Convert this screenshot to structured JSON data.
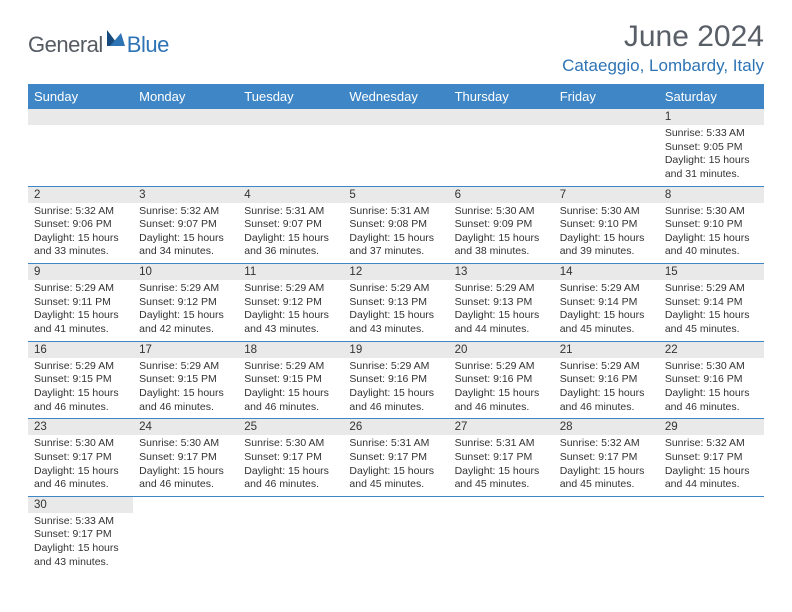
{
  "brand": {
    "general": "General",
    "blue": "Blue"
  },
  "title": "June 2024",
  "location": "Cataeggio, Lombardy, Italy",
  "colors": {
    "header_bg": "#3e86c6",
    "header_text": "#ffffff",
    "daynum_bg": "#e9e9e9",
    "border": "#3e86c6",
    "title_color": "#595f67",
    "location_color": "#2e74b5",
    "body_text": "#333333",
    "cell_fontsize": 10.5
  },
  "weekdays": [
    "Sunday",
    "Monday",
    "Tuesday",
    "Wednesday",
    "Thursday",
    "Friday",
    "Saturday"
  ],
  "weeks": [
    [
      null,
      null,
      null,
      null,
      null,
      null,
      {
        "n": "1",
        "sr": "Sunrise: 5:33 AM",
        "ss": "Sunset: 9:05 PM",
        "d1": "Daylight: 15 hours",
        "d2": "and 31 minutes."
      }
    ],
    [
      {
        "n": "2",
        "sr": "Sunrise: 5:32 AM",
        "ss": "Sunset: 9:06 PM",
        "d1": "Daylight: 15 hours",
        "d2": "and 33 minutes."
      },
      {
        "n": "3",
        "sr": "Sunrise: 5:32 AM",
        "ss": "Sunset: 9:07 PM",
        "d1": "Daylight: 15 hours",
        "d2": "and 34 minutes."
      },
      {
        "n": "4",
        "sr": "Sunrise: 5:31 AM",
        "ss": "Sunset: 9:07 PM",
        "d1": "Daylight: 15 hours",
        "d2": "and 36 minutes."
      },
      {
        "n": "5",
        "sr": "Sunrise: 5:31 AM",
        "ss": "Sunset: 9:08 PM",
        "d1": "Daylight: 15 hours",
        "d2": "and 37 minutes."
      },
      {
        "n": "6",
        "sr": "Sunrise: 5:30 AM",
        "ss": "Sunset: 9:09 PM",
        "d1": "Daylight: 15 hours",
        "d2": "and 38 minutes."
      },
      {
        "n": "7",
        "sr": "Sunrise: 5:30 AM",
        "ss": "Sunset: 9:10 PM",
        "d1": "Daylight: 15 hours",
        "d2": "and 39 minutes."
      },
      {
        "n": "8",
        "sr": "Sunrise: 5:30 AM",
        "ss": "Sunset: 9:10 PM",
        "d1": "Daylight: 15 hours",
        "d2": "and 40 minutes."
      }
    ],
    [
      {
        "n": "9",
        "sr": "Sunrise: 5:29 AM",
        "ss": "Sunset: 9:11 PM",
        "d1": "Daylight: 15 hours",
        "d2": "and 41 minutes."
      },
      {
        "n": "10",
        "sr": "Sunrise: 5:29 AM",
        "ss": "Sunset: 9:12 PM",
        "d1": "Daylight: 15 hours",
        "d2": "and 42 minutes."
      },
      {
        "n": "11",
        "sr": "Sunrise: 5:29 AM",
        "ss": "Sunset: 9:12 PM",
        "d1": "Daylight: 15 hours",
        "d2": "and 43 minutes."
      },
      {
        "n": "12",
        "sr": "Sunrise: 5:29 AM",
        "ss": "Sunset: 9:13 PM",
        "d1": "Daylight: 15 hours",
        "d2": "and 43 minutes."
      },
      {
        "n": "13",
        "sr": "Sunrise: 5:29 AM",
        "ss": "Sunset: 9:13 PM",
        "d1": "Daylight: 15 hours",
        "d2": "and 44 minutes."
      },
      {
        "n": "14",
        "sr": "Sunrise: 5:29 AM",
        "ss": "Sunset: 9:14 PM",
        "d1": "Daylight: 15 hours",
        "d2": "and 45 minutes."
      },
      {
        "n": "15",
        "sr": "Sunrise: 5:29 AM",
        "ss": "Sunset: 9:14 PM",
        "d1": "Daylight: 15 hours",
        "d2": "and 45 minutes."
      }
    ],
    [
      {
        "n": "16",
        "sr": "Sunrise: 5:29 AM",
        "ss": "Sunset: 9:15 PM",
        "d1": "Daylight: 15 hours",
        "d2": "and 46 minutes."
      },
      {
        "n": "17",
        "sr": "Sunrise: 5:29 AM",
        "ss": "Sunset: 9:15 PM",
        "d1": "Daylight: 15 hours",
        "d2": "and 46 minutes."
      },
      {
        "n": "18",
        "sr": "Sunrise: 5:29 AM",
        "ss": "Sunset: 9:15 PM",
        "d1": "Daylight: 15 hours",
        "d2": "and 46 minutes."
      },
      {
        "n": "19",
        "sr": "Sunrise: 5:29 AM",
        "ss": "Sunset: 9:16 PM",
        "d1": "Daylight: 15 hours",
        "d2": "and 46 minutes."
      },
      {
        "n": "20",
        "sr": "Sunrise: 5:29 AM",
        "ss": "Sunset: 9:16 PM",
        "d1": "Daylight: 15 hours",
        "d2": "and 46 minutes."
      },
      {
        "n": "21",
        "sr": "Sunrise: 5:29 AM",
        "ss": "Sunset: 9:16 PM",
        "d1": "Daylight: 15 hours",
        "d2": "and 46 minutes."
      },
      {
        "n": "22",
        "sr": "Sunrise: 5:30 AM",
        "ss": "Sunset: 9:16 PM",
        "d1": "Daylight: 15 hours",
        "d2": "and 46 minutes."
      }
    ],
    [
      {
        "n": "23",
        "sr": "Sunrise: 5:30 AM",
        "ss": "Sunset: 9:17 PM",
        "d1": "Daylight: 15 hours",
        "d2": "and 46 minutes."
      },
      {
        "n": "24",
        "sr": "Sunrise: 5:30 AM",
        "ss": "Sunset: 9:17 PM",
        "d1": "Daylight: 15 hours",
        "d2": "and 46 minutes."
      },
      {
        "n": "25",
        "sr": "Sunrise: 5:30 AM",
        "ss": "Sunset: 9:17 PM",
        "d1": "Daylight: 15 hours",
        "d2": "and 46 minutes."
      },
      {
        "n": "26",
        "sr": "Sunrise: 5:31 AM",
        "ss": "Sunset: 9:17 PM",
        "d1": "Daylight: 15 hours",
        "d2": "and 45 minutes."
      },
      {
        "n": "27",
        "sr": "Sunrise: 5:31 AM",
        "ss": "Sunset: 9:17 PM",
        "d1": "Daylight: 15 hours",
        "d2": "and 45 minutes."
      },
      {
        "n": "28",
        "sr": "Sunrise: 5:32 AM",
        "ss": "Sunset: 9:17 PM",
        "d1": "Daylight: 15 hours",
        "d2": "and 45 minutes."
      },
      {
        "n": "29",
        "sr": "Sunrise: 5:32 AM",
        "ss": "Sunset: 9:17 PM",
        "d1": "Daylight: 15 hours",
        "d2": "and 44 minutes."
      }
    ],
    [
      {
        "n": "30",
        "sr": "Sunrise: 5:33 AM",
        "ss": "Sunset: 9:17 PM",
        "d1": "Daylight: 15 hours",
        "d2": "and 43 minutes."
      },
      null,
      null,
      null,
      null,
      null,
      null
    ]
  ]
}
